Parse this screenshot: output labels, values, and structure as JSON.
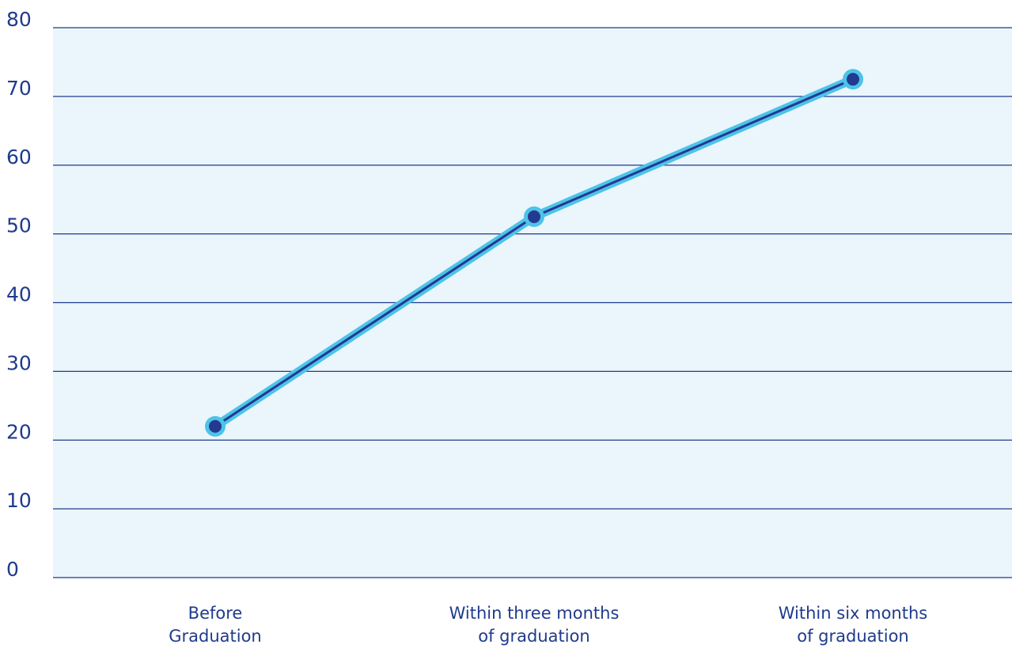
{
  "chart_data": {
    "type": "line",
    "categories": [
      [
        "Before",
        "Graduation"
      ],
      [
        "Within three months",
        "of graduation"
      ],
      [
        "Within six months",
        "of graduation"
      ]
    ],
    "series": [
      {
        "values": [
          22,
          52.5,
          72.5
        ]
      }
    ],
    "ylim": [
      0,
      80
    ],
    "yticks": [
      0,
      10,
      20,
      30,
      40,
      50,
      60,
      70,
      80
    ],
    "grid": true,
    "colors": {
      "plot_background": "#eaf6fc",
      "gridline": "#1f3b8c",
      "line_outer": "#4dc3ea",
      "line_inner": "#233a8f",
      "marker_outer": "#4dc3ea",
      "marker_inner": "#233a8f",
      "text": "#1f3b8c"
    }
  }
}
